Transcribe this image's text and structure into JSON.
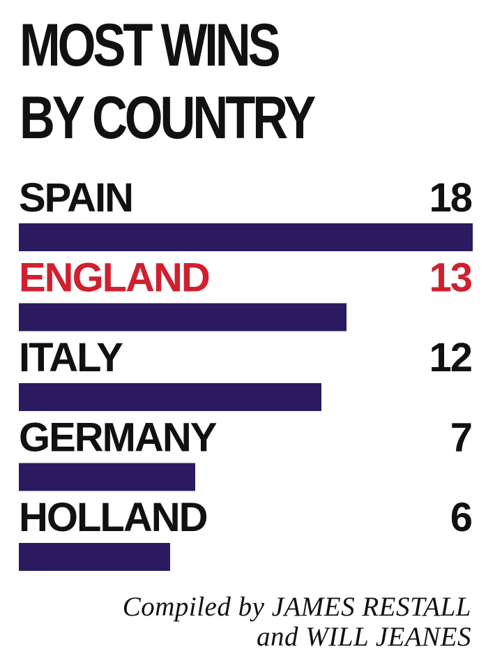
{
  "title_lines": [
    "MOST WINS",
    "BY COUNTRY"
  ],
  "credit_lines": [
    "Compiled by JAMES RESTALL",
    "and WILL JEANES"
  ],
  "colors": {
    "bar": "#2b1a5f",
    "text": "#111111",
    "highlight": "#d0202f"
  },
  "chart_data": {
    "type": "bar",
    "orientation": "horizontal",
    "title": "MOST WINS BY COUNTRY",
    "xlabel": "",
    "ylabel": "",
    "categories": [
      "SPAIN",
      "ENGLAND",
      "ITALY",
      "GERMANY",
      "HOLLAND"
    ],
    "values": [
      18,
      13,
      12,
      7,
      6
    ],
    "highlighted": "ENGLAND",
    "data_labels": true,
    "grid": false,
    "legend": "none"
  }
}
